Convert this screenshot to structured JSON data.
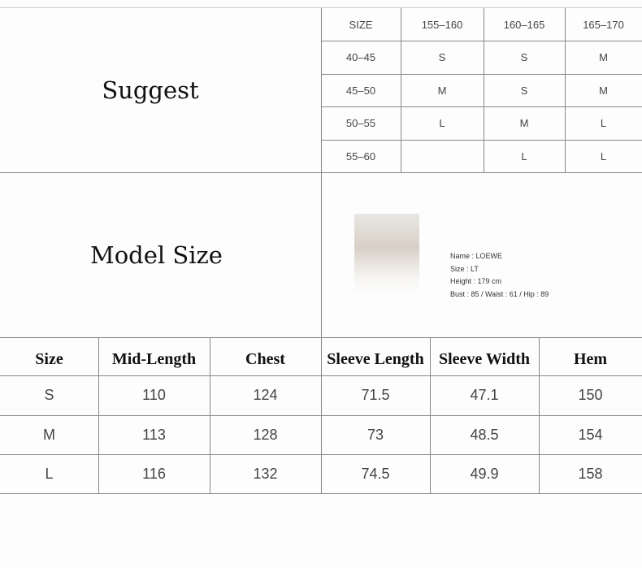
{
  "suggest": {
    "title": "Suggest",
    "headers": [
      "SIZE",
      "155–160",
      "160–165",
      "165–170"
    ],
    "rows": [
      [
        "40–45",
        "S",
        "S",
        "M"
      ],
      [
        "45–50",
        "M",
        "S",
        "M"
      ],
      [
        "50–55",
        "L",
        "M",
        "L"
      ],
      [
        "55–60",
        "",
        "L",
        "L"
      ]
    ]
  },
  "model": {
    "title": "Model Size",
    "name": "Name : LOEWE",
    "size": "Size : LT",
    "height": "Height : 179  cm",
    "measures": "Bust : 85 / Waist : 61 / Hip : 89"
  },
  "measurements": {
    "headers": [
      "Size",
      "Mid-Length",
      "Chest",
      "Sleeve Length",
      "Sleeve Width",
      "Hem"
    ],
    "rows": [
      [
        "S",
        "110",
        "124",
        "71.5",
        "47.1",
        "150"
      ],
      [
        "M",
        "113",
        "128",
        "73",
        "48.5",
        "154"
      ],
      [
        "L",
        "116",
        "132",
        "74.5",
        "49.9",
        "158"
      ]
    ]
  }
}
